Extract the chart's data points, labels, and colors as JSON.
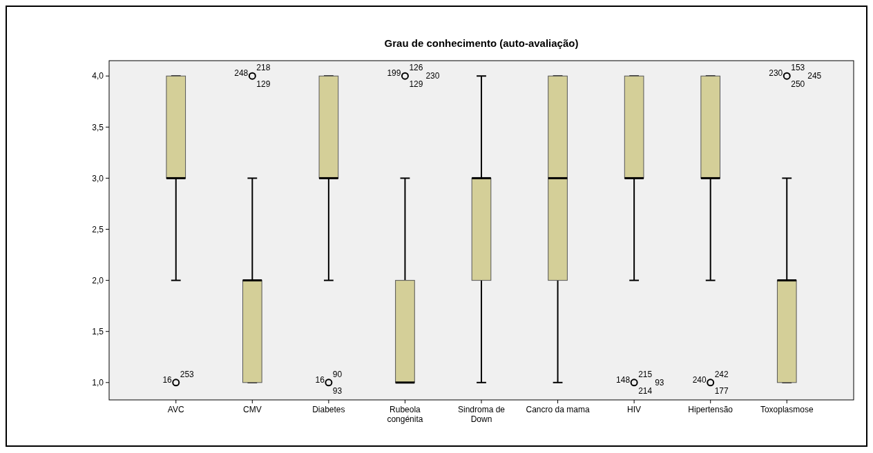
{
  "chart_data": {
    "type": "box",
    "title": "Grau de conhecimento (auto-avaliação)",
    "categories": [
      "AVC",
      "CMV",
      "Diabetes",
      "Rubeola\ncongénita",
      "Sindroma de\nDown",
      "Cancro da mama",
      "HIV",
      "Hipertensão",
      "Toxoplasmose"
    ],
    "color": "#d4cf98",
    "boxes": [
      {
        "low": 2,
        "q1": 3,
        "median": 3,
        "q3": 4,
        "high": 4
      },
      {
        "low": 1,
        "q1": 1,
        "median": 2,
        "q3": 2,
        "high": 3
      },
      {
        "low": 2,
        "q1": 3,
        "median": 3,
        "q3": 4,
        "high": 4
      },
      {
        "low": 1,
        "q1": 1,
        "median": 1,
        "q3": 2,
        "high": 3
      },
      {
        "low": 1,
        "q1": 2,
        "median": 3,
        "q3": 3,
        "high": 4
      },
      {
        "low": 1,
        "q1": 2,
        "median": 3,
        "q3": 4,
        "high": 4
      },
      {
        "low": 2,
        "q1": 3,
        "median": 3,
        "q3": 4,
        "high": 4
      },
      {
        "low": 2,
        "q1": 3,
        "median": 3,
        "q3": 4,
        "high": 4
      },
      {
        "low": 1,
        "q1": 1,
        "median": 2,
        "q3": 2,
        "high": 3
      }
    ],
    "series": [
      {
        "type": "scatter",
        "color": "#000000",
        "marker": "circle",
        "x": [
          "AVC",
          "CMV",
          "Diabetes",
          "Rubeola\ncongénita",
          "HIV",
          "Hipertensão",
          "Toxoplasmose"
        ],
        "values": [
          1,
          4,
          1,
          4,
          1,
          1,
          4
        ]
      }
    ],
    "ylim": [
      0.83,
      4.15
    ],
    "yticks": [
      {
        "value": 1,
        "label": "1,0"
      },
      {
        "value": 1.5,
        "label": "1,5"
      },
      {
        "value": 2,
        "label": "2,0"
      },
      {
        "value": 2.5,
        "label": "2,5"
      },
      {
        "value": 3,
        "label": "3,0"
      },
      {
        "value": 3.5,
        "label": "3,5"
      },
      {
        "value": 4,
        "label": "4,0"
      }
    ],
    "annotations": [
      {
        "text": "16",
        "x": "AVC",
        "y": 1
      },
      {
        "text": "253",
        "x": "AVC",
        "y": 1
      },
      {
        "text": "248",
        "x": "CMV",
        "y": 4
      },
      {
        "text": "218",
        "x": "CMV",
        "y": 4
      },
      {
        "text": "129",
        "x": "CMV",
        "y": 4
      },
      {
        "text": "16",
        "x": "Diabetes",
        "y": 1
      },
      {
        "text": "90",
        "x": "Diabetes",
        "y": 1
      },
      {
        "text": "93",
        "x": "Diabetes",
        "y": 1
      },
      {
        "text": "199",
        "x": "Rubeola\ncongénita",
        "y": 4
      },
      {
        "text": "126",
        "x": "Rubeola\ncongénita",
        "y": 4
      },
      {
        "text": "129",
        "x": "Rubeola\ncongénita",
        "y": 4
      },
      {
        "text": "230",
        "x": "Rubeola\ncongénita",
        "y": 4
      },
      {
        "text": "148",
        "x": "HIV",
        "y": 1
      },
      {
        "text": "215",
        "x": "HIV",
        "y": 1
      },
      {
        "text": "214",
        "x": "HIV",
        "y": 1
      },
      {
        "text": "93",
        "x": "HIV",
        "y": 1
      },
      {
        "text": "240",
        "x": "Hipertensão",
        "y": 1
      },
      {
        "text": "242",
        "x": "Hipertensão",
        "y": 1
      },
      {
        "text": "177",
        "x": "Hipertensão",
        "y": 1
      },
      {
        "text": "230",
        "x": "Toxoplasmose",
        "y": 4
      },
      {
        "text": "153",
        "x": "Toxoplasmose",
        "y": 4
      },
      {
        "text": "250",
        "x": "Toxoplasmose",
        "y": 4
      },
      {
        "text": "245",
        "x": "Toxoplasmose",
        "y": 4
      }
    ],
    "grid": false
  }
}
